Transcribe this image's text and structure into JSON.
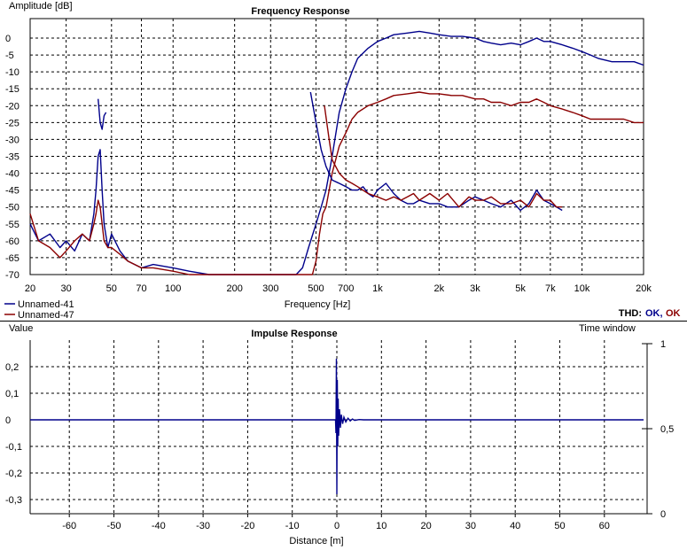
{
  "chart_data": [
    {
      "type": "line",
      "title": "Frequency Response",
      "xlabel": "Frequency [Hz]",
      "ylabel": "Amplitude [dB]",
      "xscale": "log",
      "xlim": [
        20,
        20000
      ],
      "ylim": [
        -70,
        5
      ],
      "grid": true,
      "legend_position": "bottom-left",
      "x_ticks": [
        20,
        30,
        50,
        70,
        100,
        200,
        300,
        500,
        700,
        1000,
        2000,
        3000,
        5000,
        7000,
        10000,
        20000
      ],
      "x_tick_labels": [
        "20",
        "30",
        "50",
        "70",
        "100",
        "200",
        "300",
        "500",
        "700",
        "1k",
        "2k",
        "3k",
        "5k",
        "7k",
        "10k",
        "20k"
      ],
      "y_ticks": [
        0,
        -5,
        -10,
        -15,
        -20,
        -25,
        -30,
        -35,
        -40,
        -45,
        -50,
        -55,
        -60,
        -65,
        -70
      ],
      "series": [
        {
          "name": "Unnamed-41",
          "color": "#00008b",
          "x": [
            20,
            22,
            25,
            28,
            30,
            33,
            36,
            39,
            41,
            42,
            43,
            44,
            45,
            46,
            48,
            50,
            55,
            60,
            70,
            80,
            100,
            120,
            150,
            200,
            250,
            300,
            350,
            400,
            430,
            460,
            500,
            530,
            560,
            600,
            650,
            700,
            750,
            800,
            900,
            1000,
            1100,
            1200,
            1400,
            1600,
            1800,
            2000,
            2300,
            2600,
            3000,
            3300,
            3600,
            4000,
            4500,
            5000,
            5500,
            6000,
            6500,
            7000,
            8000,
            9000,
            10000,
            11000,
            12000,
            14000,
            16000,
            18000,
            20000
          ],
          "y": [
            -55,
            -60,
            -58,
            -62,
            -60,
            -63,
            -58,
            -60,
            -52,
            -45,
            -35,
            -33,
            -45,
            -55,
            -62,
            -58,
            -63,
            -66,
            -68,
            -67,
            -68,
            -69,
            -70,
            -70,
            -70,
            -70,
            -70,
            -70,
            -68,
            -62,
            -55,
            -50,
            -45,
            -35,
            -22,
            -15,
            -10,
            -6,
            -3,
            -1,
            0,
            1,
            1.5,
            2,
            1.5,
            1,
            0.5,
            0.5,
            0,
            -1,
            -1.5,
            -2,
            -1.5,
            -2,
            -1,
            0,
            -1,
            -1,
            -2,
            -3,
            -4,
            -5,
            -6,
            -7,
            -7,
            -7,
            -8
          ]
        },
        {
          "name": "Unnamed-47",
          "color": "#8b0000",
          "x": [
            20,
            22,
            25,
            28,
            30,
            33,
            36,
            39,
            41,
            42,
            43,
            44,
            45,
            46,
            48,
            50,
            55,
            60,
            70,
            80,
            100,
            120,
            150,
            200,
            250,
            300,
            350,
            400,
            450,
            480,
            500,
            520,
            540,
            560,
            580,
            600,
            650,
            700,
            750,
            800,
            900,
            1000,
            1100,
            1200,
            1400,
            1600,
            1800,
            2000,
            2300,
            2600,
            3000,
            3300,
            3600,
            4000,
            4500,
            5000,
            5500,
            6000,
            6500,
            7000,
            8000,
            9000,
            10000,
            11000,
            12000,
            14000,
            16000,
            18000,
            20000
          ],
          "y": [
            -52,
            -60,
            -62,
            -65,
            -63,
            -60,
            -58,
            -60,
            -55,
            -52,
            -48,
            -50,
            -55,
            -60,
            -62,
            -62,
            -64,
            -66,
            -68,
            -68,
            -69,
            -70,
            -70,
            -70,
            -70,
            -70,
            -70,
            -70,
            -70,
            -70,
            -66,
            -58,
            -52,
            -50,
            -45,
            -40,
            -32,
            -28,
            -24,
            -22,
            -20,
            -19,
            -18,
            -17,
            -16.5,
            -16,
            -16.5,
            -16.5,
            -17,
            -17,
            -18,
            -18,
            -19,
            -19,
            -20,
            -19,
            -19,
            -18,
            -19,
            -20,
            -21,
            -22,
            -23,
            -24,
            -24,
            -24,
            -24,
            -25,
            -25
          ]
        },
        {
          "name": "Unnamed-41",
          "color": "#00008b",
          "x": [
            470,
            500,
            530,
            560,
            600,
            650,
            700,
            750,
            800,
            850,
            900,
            950,
            1000,
            1100,
            1200,
            1300,
            1400,
            1500,
            1600,
            1800,
            2000,
            2200,
            2500,
            2800,
            3000,
            3300,
            3600,
            4000,
            4500,
            5000,
            5500,
            6000,
            6500,
            7000,
            7500,
            8000
          ],
          "y": [
            -16,
            -25,
            -33,
            -38,
            -42,
            -43,
            -44,
            -45,
            -45,
            -44,
            -46,
            -47,
            -45,
            -43,
            -46,
            -48,
            -49,
            -49,
            -48,
            -49,
            -49,
            -50,
            -50,
            -48,
            -47,
            -48,
            -49,
            -50,
            -48,
            -51,
            -49,
            -45,
            -48,
            -49,
            -50,
            -51
          ]
        },
        {
          "name": "Unnamed-47",
          "color": "#8b0000",
          "x": [
            550,
            580,
            600,
            650,
            700,
            750,
            800,
            900,
            1000,
            1100,
            1200,
            1300,
            1400,
            1500,
            1600,
            1800,
            2000,
            2200,
            2500,
            2800,
            3000,
            3300,
            3600,
            4000,
            4500,
            5000,
            5500,
            6000,
            6500,
            7000,
            7500,
            8000
          ],
          "y": [
            -20,
            -30,
            -36,
            -40,
            -42,
            -43,
            -44,
            -46,
            -47,
            -48,
            -47,
            -48,
            -47,
            -46,
            -48,
            -46,
            -48,
            -46,
            -50,
            -47,
            -48,
            -48,
            -47,
            -49,
            -49,
            -48,
            -50,
            -46,
            -48,
            -48,
            -50,
            -50
          ]
        },
        {
          "name": "Unnamed-41",
          "color": "#00008b",
          "x": [
            43,
            44,
            45,
            46,
            47
          ],
          "y": [
            -18,
            -25,
            -27,
            -23,
            -22
          ]
        }
      ],
      "legend": [
        {
          "label": "Unnamed-41",
          "color": "#00008b"
        },
        {
          "label": "Unnamed-47",
          "color": "#8b0000"
        }
      ],
      "thd": {
        "label": "THD:",
        "values": [
          {
            "text": "OK,",
            "color": "#00008b"
          },
          {
            "text": "OK",
            "color": "#8b0000"
          }
        ]
      }
    },
    {
      "type": "line",
      "title": "Impulse Response",
      "xlabel": "Distance [m]",
      "ylabel": "Value",
      "xlim": [
        -69,
        69
      ],
      "ylim": [
        -0.32,
        0.26
      ],
      "grid": true,
      "x_ticks": [
        -60,
        -50,
        -40,
        -30,
        -20,
        -10,
        0,
        10,
        20,
        30,
        40,
        50,
        60
      ],
      "x_tick_labels": [
        "-60",
        "-50",
        "-40",
        "-30",
        "-20",
        "-10",
        "0",
        "10",
        "20",
        "30",
        "40",
        "50",
        "60"
      ],
      "y_ticks": [
        0.2,
        0.1,
        0,
        -0.1,
        -0.2,
        -0.3
      ],
      "y_tick_labels": [
        "0,2",
        "0,1",
        "0",
        "-0,1",
        "-0,2",
        "-0,3"
      ],
      "right_axis": {
        "label": "Time window",
        "ylim": [
          0,
          1
        ],
        "ticks": [
          1,
          0.5,
          0
        ],
        "tick_labels": [
          "1",
          "0,5",
          "0"
        ]
      },
      "series": [
        {
          "name": "Unnamed-41",
          "color": "#00008b",
          "x": [
            -69,
            -0.3,
            -0.2,
            -0.1,
            0,
            0.1,
            0.2,
            0.3,
            0.4,
            0.6,
            0.8,
            1.0,
            1.3,
            1.6,
            2.0,
            2.5,
            3,
            3.5,
            4,
            5,
            6,
            69
          ],
          "y": [
            0,
            0,
            -0.05,
            0.23,
            -0.28,
            0.15,
            -0.1,
            0.08,
            -0.06,
            0.04,
            -0.03,
            0.02,
            -0.015,
            0.01,
            -0.008,
            0.006,
            -0.004,
            0.003,
            -0.002,
            0.001,
            0,
            0
          ]
        }
      ]
    }
  ]
}
